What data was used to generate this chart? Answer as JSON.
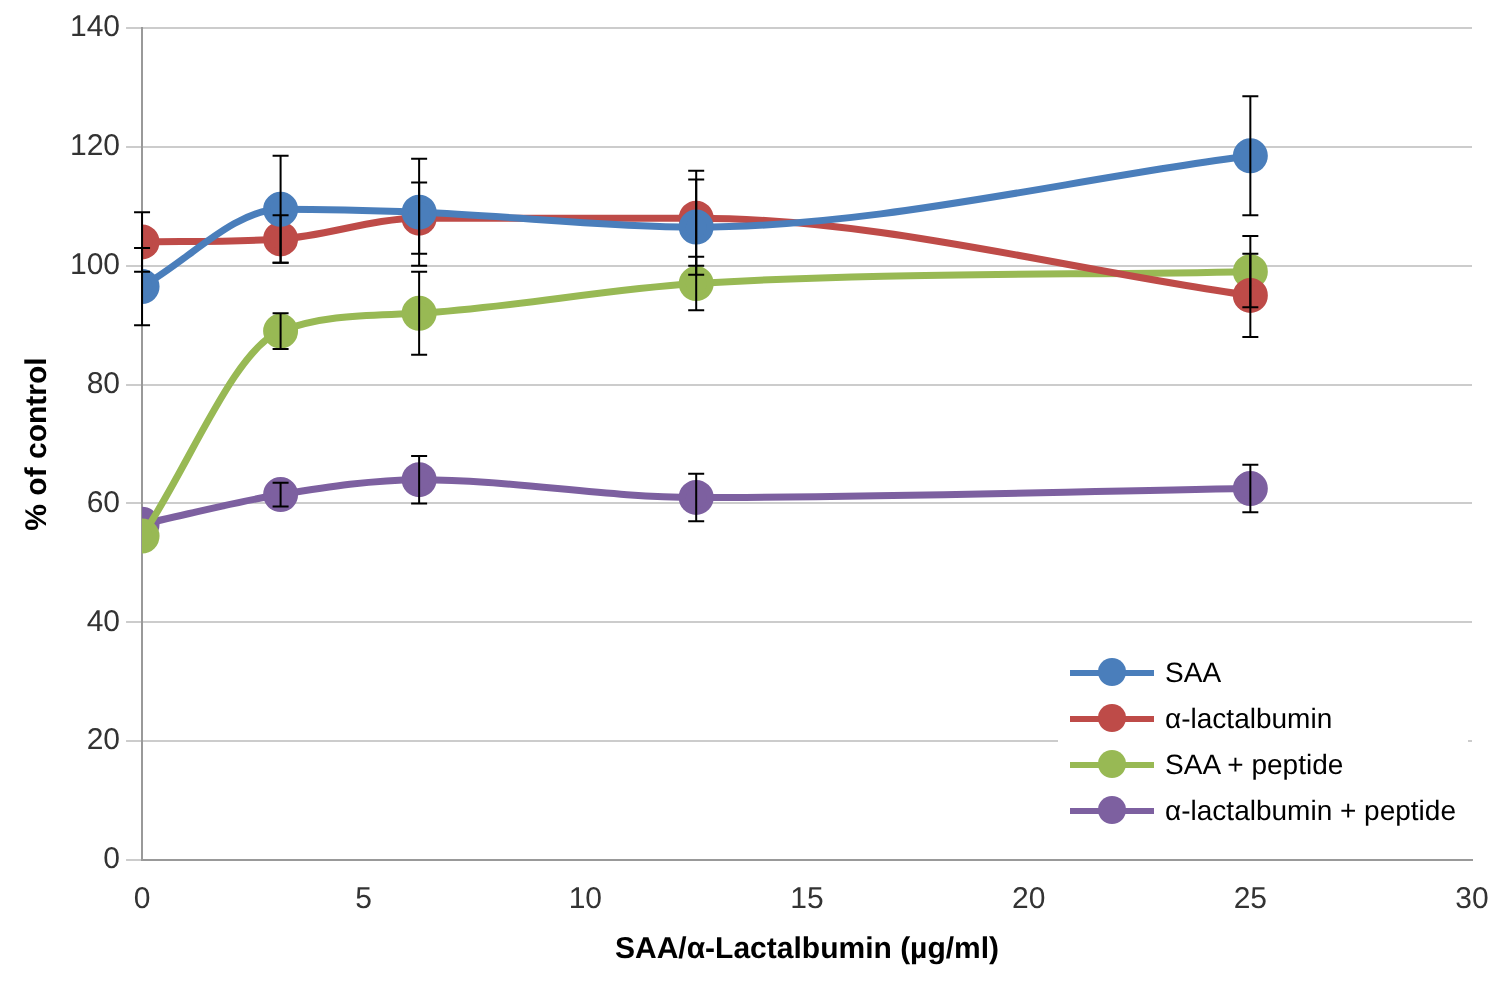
{
  "chart_data": {
    "type": "line",
    "xlabel": "SAA/α-Lactalbumin (µg/ml)",
    "ylabel": "% of control",
    "x": [
      0,
      3.125,
      6.25,
      12.5,
      25
    ],
    "xlim": [
      0,
      30
    ],
    "xticks": [
      0,
      5,
      10,
      15,
      20,
      25,
      30
    ],
    "ylim": [
      0,
      140
    ],
    "yticks": [
      0,
      20,
      40,
      60,
      80,
      100,
      120,
      140
    ],
    "grid": "y",
    "legend": "bottom right",
    "marker": "circle",
    "line_style": "solid",
    "series": [
      {
        "name": "SAA",
        "color": "#4a7ebb",
        "values": [
          96.5,
          109.5,
          109,
          106.5,
          118.5
        ],
        "errors": [
          6.5,
          9,
          9,
          8,
          10
        ]
      },
      {
        "name": "α-lactalbumin",
        "color": "#be4b48",
        "values": [
          104,
          104.5,
          108,
          108,
          95
        ],
        "errors": [
          5,
          4,
          6,
          8,
          7
        ]
      },
      {
        "name": "SAA + peptide",
        "color": "#98b954",
        "values": [
          54.5,
          89,
          92,
          97,
          99
        ],
        "errors": [
          null,
          3,
          7,
          4.5,
          6
        ]
      },
      {
        "name": "α-lactalbumin + peptide",
        "color": "#7d60a0",
        "values": [
          56.5,
          61.5,
          64,
          61,
          62.5
        ],
        "errors": [
          null,
          2,
          4,
          4,
          4
        ]
      }
    ]
  }
}
